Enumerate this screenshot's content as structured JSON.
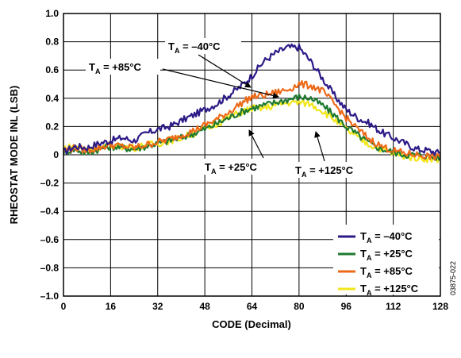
{
  "chart_data": {
    "type": "line",
    "xlabel": "CODE (Decimal)",
    "ylabel": "RHEOSTAT MODE INL (LSB)",
    "xlim": [
      0,
      128
    ],
    "ylim": [
      -1.0,
      1.0
    ],
    "x_ticks": [
      "0",
      "16",
      "32",
      "48",
      "64",
      "80",
      "96",
      "112",
      "128"
    ],
    "y_ticks": [
      "1.0",
      "0.8",
      "0.6",
      "0.4",
      "0.2",
      "0",
      "–0.2",
      "–0.4",
      "–0.6",
      "–0.8",
      "–1.0"
    ],
    "grid": true,
    "legend_position": "bottom-right",
    "figure_code": "03875-022",
    "x": [
      0,
      4,
      8,
      12,
      16,
      20,
      24,
      28,
      32,
      36,
      40,
      44,
      48,
      52,
      56,
      60,
      64,
      68,
      72,
      76,
      80,
      84,
      88,
      92,
      96,
      100,
      104,
      108,
      112,
      116,
      120,
      124,
      128
    ],
    "series": [
      {
        "name_main": "T",
        "name_sub": "A",
        "name_rest": " = –40°C",
        "color": "#2e1a87",
        "values": [
          0.02,
          0.06,
          0.05,
          0.08,
          0.1,
          0.12,
          0.1,
          0.15,
          0.18,
          0.2,
          0.24,
          0.28,
          0.32,
          0.36,
          0.42,
          0.48,
          0.56,
          0.66,
          0.72,
          0.76,
          0.76,
          0.66,
          0.54,
          0.42,
          0.32,
          0.26,
          0.22,
          0.16,
          0.12,
          0.08,
          0.04,
          0.03,
          0.01
        ]
      },
      {
        "name_main": "T",
        "name_sub": "A",
        "name_rest": " = +25°C",
        "color": "#1f7a30",
        "values": [
          0.02,
          0.04,
          0.01,
          0.04,
          0.06,
          0.05,
          0.04,
          0.06,
          0.08,
          0.1,
          0.12,
          0.15,
          0.18,
          0.22,
          0.26,
          0.3,
          0.33,
          0.35,
          0.37,
          0.39,
          0.41,
          0.4,
          0.35,
          0.28,
          0.2,
          0.14,
          0.08,
          0.04,
          0.02,
          0.0,
          0.0,
          -0.01,
          -0.02
        ]
      },
      {
        "name_main": "T",
        "name_sub": "A",
        "name_rest": " = +85°C",
        "color": "#ee6a18",
        "values": [
          0.03,
          0.05,
          0.03,
          0.05,
          0.07,
          0.06,
          0.05,
          0.07,
          0.09,
          0.11,
          0.14,
          0.17,
          0.21,
          0.25,
          0.3,
          0.36,
          0.41,
          0.42,
          0.44,
          0.46,
          0.5,
          0.49,
          0.45,
          0.36,
          0.26,
          0.18,
          0.11,
          0.06,
          0.03,
          0.01,
          0.0,
          -0.01,
          -0.02
        ]
      },
      {
        "name_main": "T",
        "name_sub": "A",
        "name_rest": " = +125°C",
        "color": "#f2e61a",
        "values": [
          0.05,
          0.06,
          0.04,
          0.05,
          0.06,
          0.06,
          0.05,
          0.07,
          0.08,
          0.1,
          0.12,
          0.15,
          0.18,
          0.22,
          0.26,
          0.3,
          0.33,
          0.33,
          0.35,
          0.37,
          0.37,
          0.36,
          0.31,
          0.25,
          0.18,
          0.12,
          0.07,
          0.04,
          0.01,
          -0.01,
          -0.02,
          -0.03,
          -0.03
        ]
      }
    ],
    "annotations": [
      {
        "main": "T",
        "sub": "A",
        "rest": " = –40°C"
      },
      {
        "main": "T",
        "sub": "A",
        "rest": " = +85°C"
      },
      {
        "main": "T",
        "sub": "A",
        "rest": " = +25°C"
      },
      {
        "main": "T",
        "sub": "A",
        "rest": " = +125°C"
      }
    ]
  }
}
